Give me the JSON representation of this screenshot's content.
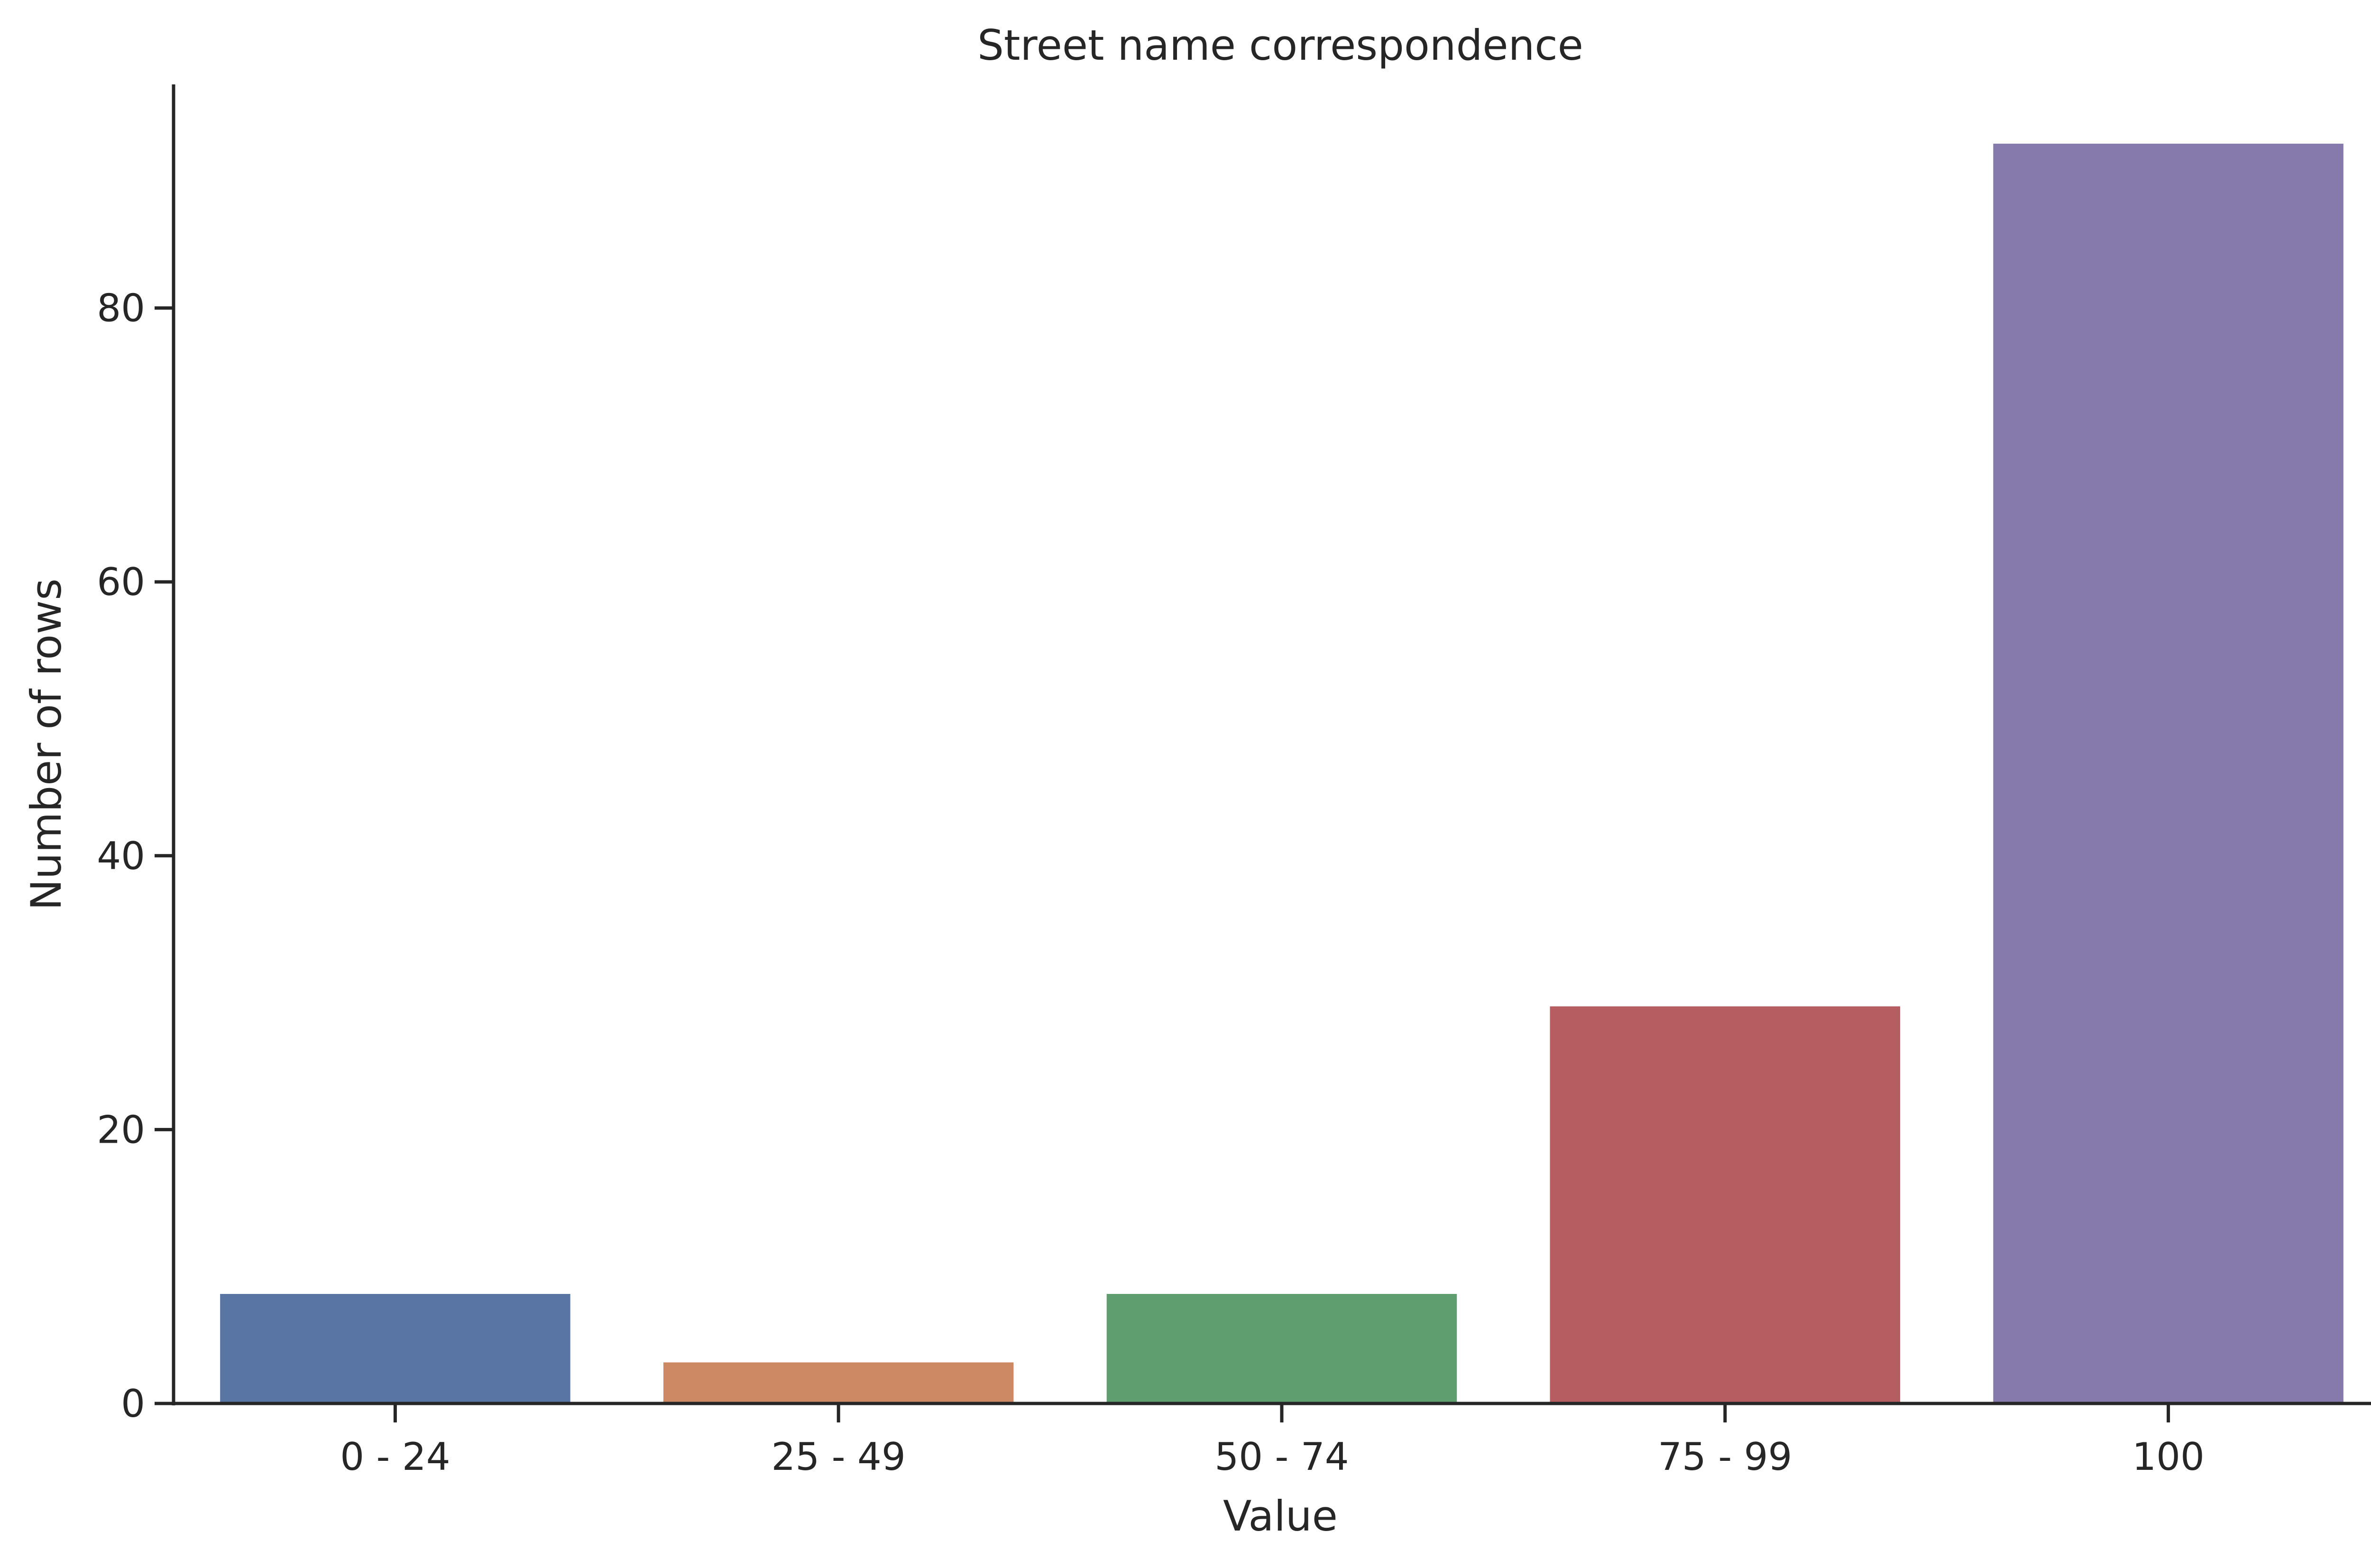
{
  "chart_data": {
    "type": "bar",
    "title": "Street name correspondence",
    "xlabel": "Value",
    "ylabel": "Number of rows",
    "categories": [
      "0 - 24",
      "25 - 49",
      "50 - 74",
      "75 - 99",
      "100"
    ],
    "values": [
      8,
      3,
      8,
      29,
      92
    ],
    "ylim": [
      0,
      97
    ],
    "yticks": [
      0,
      20,
      40,
      60,
      80
    ],
    "grid": false,
    "legend": "none",
    "colors": [
      "#5975a4",
      "#cc8963",
      "#5f9e6e",
      "#b55d60",
      "#857aab"
    ],
    "axis_color": "#262626",
    "text_color": "#262626"
  }
}
